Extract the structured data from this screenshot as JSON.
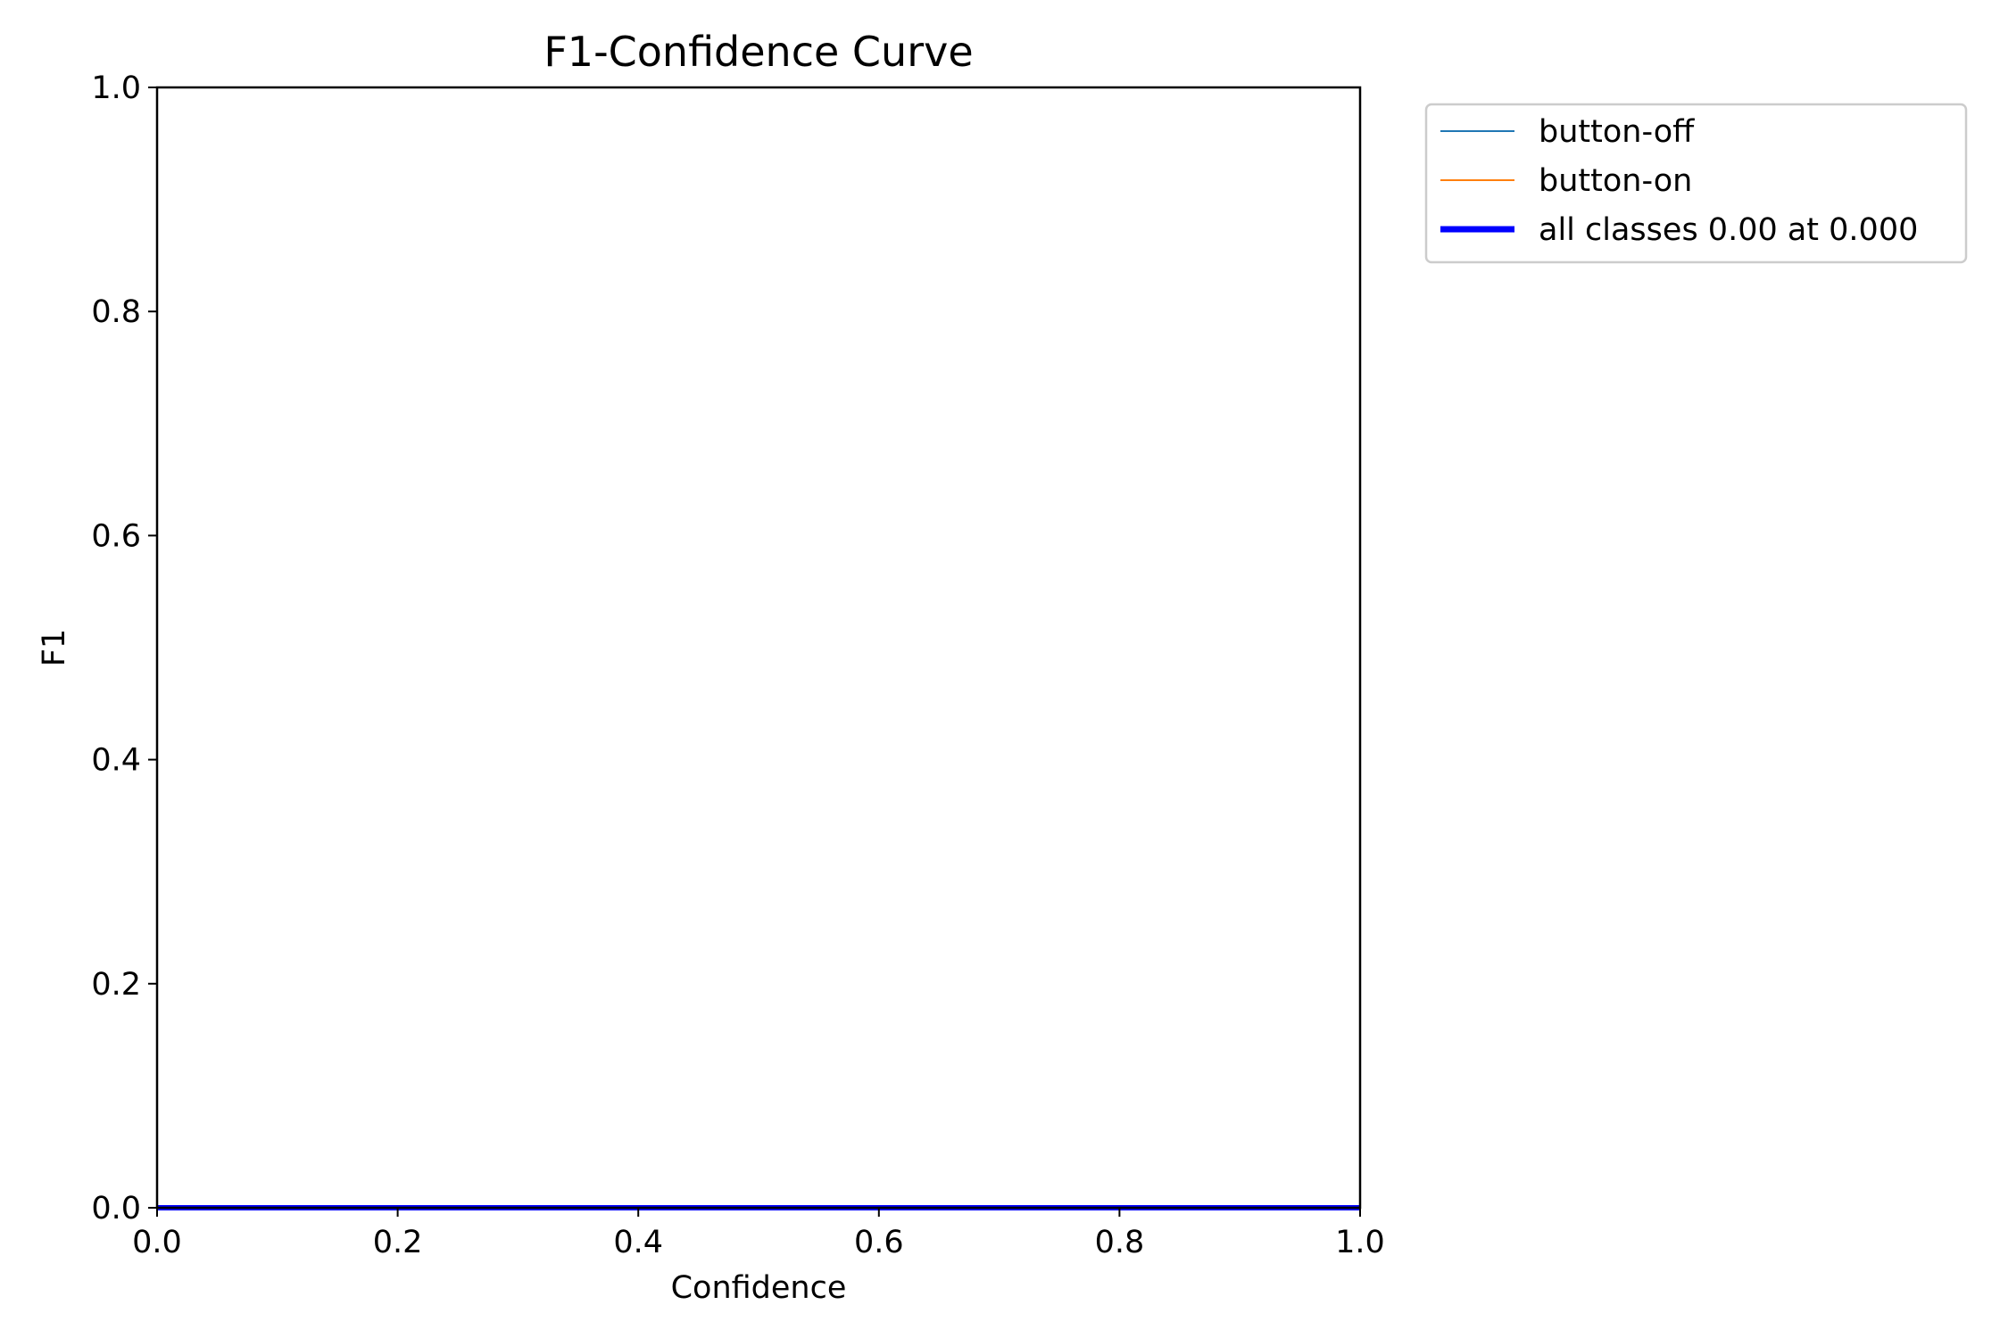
{
  "chart_data": {
    "type": "line",
    "title": "F1-Confidence Curve",
    "xlabel": "Confidence",
    "ylabel": "F1",
    "xlim": [
      0.0,
      1.0
    ],
    "ylim": [
      0.0,
      1.0
    ],
    "xticks": [
      "0.0",
      "0.2",
      "0.4",
      "0.6",
      "0.8",
      "1.0"
    ],
    "yticks": [
      "0.0",
      "0.2",
      "0.4",
      "0.6",
      "0.8",
      "1.0"
    ],
    "grid": false,
    "legend_position": "outside-top-right",
    "series": [
      {
        "name": "button-off",
        "color": "#1f77b4",
        "x": [
          0.0,
          1.0
        ],
        "y": [
          0.0,
          0.0
        ]
      },
      {
        "name": "button-on",
        "color": "#ff7f0e",
        "x": [
          0.0,
          1.0
        ],
        "y": [
          0.0,
          0.0
        ]
      },
      {
        "name": "all classes 0.00 at 0.000",
        "color": "#0000ff",
        "x": [
          0.0,
          1.0
        ],
        "y": [
          0.0,
          0.0
        ]
      }
    ]
  }
}
